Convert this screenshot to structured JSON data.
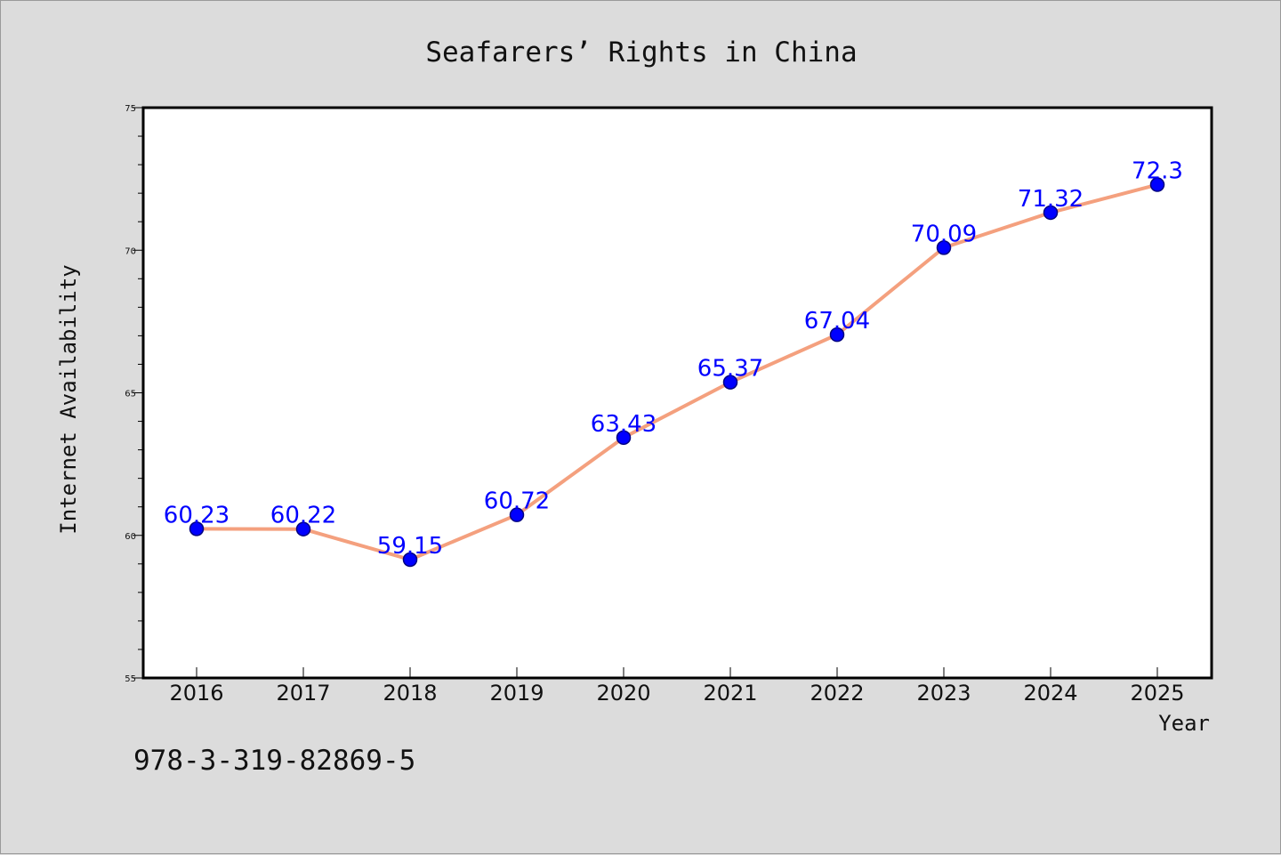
{
  "chart_data": {
    "type": "line",
    "title": "Seafarers’ Rights in China",
    "xlabel": "Year",
    "ylabel": "Internet Availability",
    "categories": [
      "2016",
      "2017",
      "2018",
      "2019",
      "2020",
      "2021",
      "2022",
      "2023",
      "2024",
      "2025"
    ],
    "values": [
      60.23,
      60.22,
      59.15,
      60.72,
      63.43,
      65.37,
      67.04,
      70.09,
      71.32,
      72.3
    ],
    "data_labels": [
      "60.23",
      "60.22",
      "59.15",
      "60.72",
      "63.43",
      "65.37",
      "67.04",
      "70.09",
      "71.32",
      "72.3"
    ],
    "ylim": [
      55,
      75
    ],
    "yticks": [
      55,
      60,
      65,
      70,
      75
    ],
    "grid": false,
    "legend": "none",
    "colors": {
      "line": "#f4a07e",
      "marker": "#0000ff",
      "marker_edge": "#000080",
      "data_label": "#0000ff",
      "plot_background": "#ffffff",
      "page_background": "#dcdcdc"
    }
  },
  "footer": {
    "isbn": "978-3-319-82869-5"
  }
}
